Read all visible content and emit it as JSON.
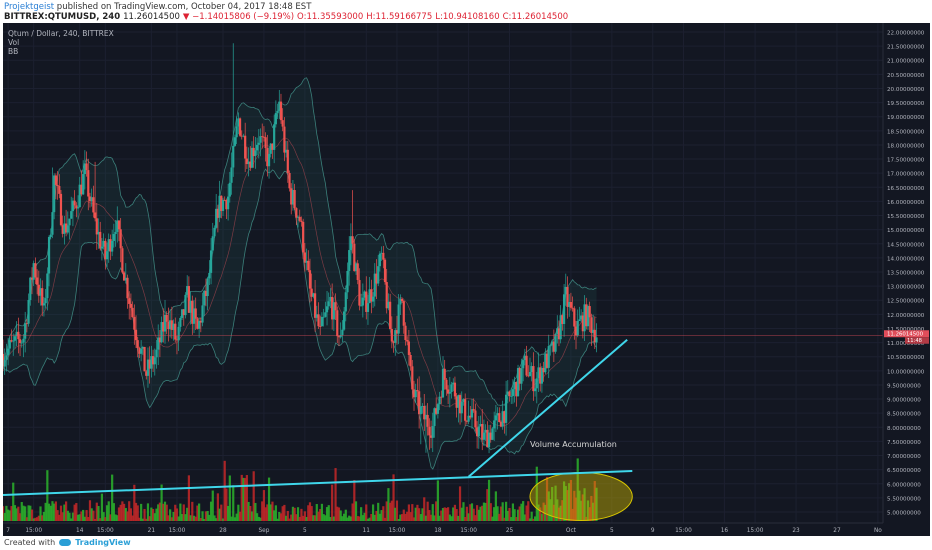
{
  "header": {
    "user": "Projektgeist",
    "published_text": "published on TradingView.com, October 04, 2017 18:48 EST",
    "symbol": "BITTREX:QTUMUSD, 240",
    "price": "11.26014500",
    "change": "▼ −1.14015806 (−9.19%)",
    "o": "O:11.35593000",
    "h": "H:11.59166775",
    "l": "L:10.94108160",
    "c": "C:11.26014500"
  },
  "legend": {
    "line1": "Qtum / Dollar, 240, BITTREX",
    "line2": "Vol",
    "line3": "BB"
  },
  "footer": {
    "created_with": "Created with",
    "brand": "TradingView"
  },
  "colors": {
    "background": "#131722",
    "up": "#26a69a",
    "down": "#ef5350",
    "vol_up": "#2bb32b",
    "vol_down": "#c62828",
    "band": "#3b7f7a",
    "trend": "#3fd6ea",
    "last_price": "#e04d5a"
  },
  "chart_data": {
    "type": "candlestick",
    "y_axis": {
      "min": 5.0,
      "max": 22.0,
      "ticks": [
        "5.00000000",
        "5.50000000",
        "6.00000000",
        "6.50000000",
        "7.00000000",
        "7.50000000",
        "8.00000000",
        "8.50000000",
        "9.00000000",
        "9.50000000",
        "10.00000000",
        "10.50000000",
        "11.00000000",
        "11.50000000",
        "12.00000000",
        "12.50000000",
        "13.00000000",
        "13.50000000",
        "14.00000000",
        "14.50000000",
        "15.00000000",
        "15.50000000",
        "16.00000000",
        "16.50000000",
        "17.00000000",
        "17.50000000",
        "18.00000000",
        "18.50000000",
        "19.00000000",
        "19.50000000",
        "20.00000000",
        "20.50000000",
        "21.00000000",
        "21.50000000",
        "22.00000000"
      ]
    },
    "x_axis": {
      "labels": [
        {
          "text": "7",
          "day": 0.5
        },
        {
          "text": "15:00",
          "day": 3
        },
        {
          "text": "14",
          "day": 7.5
        },
        {
          "text": "15:00",
          "day": 10
        },
        {
          "text": "21",
          "day": 14.5
        },
        {
          "text": "15:00",
          "day": 17
        },
        {
          "text": "28",
          "day": 21.5
        },
        {
          "text": "Sep",
          "day": 25.5
        },
        {
          "text": "5",
          "day": 29.5
        },
        {
          "text": "11",
          "day": 35.5
        },
        {
          "text": "15:00",
          "day": 38.5
        },
        {
          "text": "18",
          "day": 42.5
        },
        {
          "text": "15:00",
          "day": 45.5
        },
        {
          "text": "25",
          "day": 49.5
        },
        {
          "text": "Oct",
          "day": 55.5
        },
        {
          "text": "5",
          "day": 59.5
        },
        {
          "text": "9",
          "day": 63.5
        },
        {
          "text": "15:00",
          "day": 66.5
        },
        {
          "text": "16",
          "day": 70.5
        },
        {
          "text": "15:00",
          "day": 73.5
        },
        {
          "text": "23",
          "day": 77.5
        },
        {
          "text": "27",
          "day": 81.5
        },
        {
          "text": "No",
          "day": 85.5
        }
      ],
      "day_range": [
        0,
        86
      ]
    },
    "price_path": [
      [
        0,
        10.6
      ],
      [
        2,
        11.2
      ],
      [
        3,
        13.8
      ],
      [
        4,
        12.0
      ],
      [
        5,
        16.8
      ],
      [
        6,
        15.0
      ],
      [
        7,
        15.8
      ],
      [
        8,
        17.0
      ],
      [
        9,
        15.2
      ],
      [
        10,
        14.0
      ],
      [
        11,
        15.3
      ],
      [
        12,
        13.2
      ],
      [
        13,
        11.4
      ],
      [
        14,
        9.9
      ],
      [
        15,
        10.6
      ],
      [
        16,
        12.0
      ],
      [
        17,
        11.0
      ],
      [
        18,
        12.6
      ],
      [
        19,
        11.4
      ],
      [
        20,
        13.0
      ],
      [
        21,
        15.8
      ],
      [
        22,
        16.2
      ],
      [
        23,
        18.9
      ],
      [
        24,
        17.5
      ],
      [
        25,
        18.3
      ],
      [
        26,
        17.4
      ],
      [
        27,
        19.5
      ],
      [
        28,
        16.4
      ],
      [
        29,
        15.4
      ],
      [
        30,
        12.8
      ],
      [
        31,
        11.3
      ],
      [
        32,
        12.5
      ],
      [
        33,
        11.0
      ],
      [
        34,
        14.8
      ],
      [
        35,
        12.2
      ],
      [
        36,
        12.8
      ],
      [
        37,
        14.0
      ],
      [
        38,
        11.0
      ],
      [
        39,
        12.5
      ],
      [
        40,
        9.3
      ],
      [
        41,
        8.4
      ],
      [
        42,
        8.0
      ],
      [
        43,
        9.8
      ],
      [
        44,
        9.4
      ],
      [
        45,
        8.6
      ],
      [
        46,
        8.2
      ],
      [
        47,
        7.6
      ],
      [
        48,
        8.0
      ],
      [
        49,
        8.6
      ],
      [
        50,
        9.4
      ],
      [
        51,
        10.2
      ],
      [
        52,
        9.6
      ],
      [
        53,
        10.3
      ],
      [
        54,
        10.9
      ],
      [
        55,
        12.6
      ],
      [
        56,
        11.5
      ],
      [
        57,
        12.0
      ],
      [
        58,
        11.3
      ]
    ],
    "last_price": 11.260145,
    "last_price_labels": [
      "11.26014500",
      "11:48"
    ],
    "annotations": [
      {
        "type": "trendline",
        "name": "support",
        "from": [
          45.5,
          6.25
        ],
        "to": [
          61.0,
          11.1
        ]
      },
      {
        "type": "trendline",
        "name": "volume-base",
        "from": [
          0,
          5.6
        ],
        "to": [
          61.5,
          6.45
        ]
      },
      {
        "type": "ellipse",
        "name": "volume-accumulation",
        "center": [
          56.5,
          5.55
        ],
        "rx_days": 5.0,
        "ry_price": 0.85
      },
      {
        "type": "text",
        "name": "volume-accumulation-label",
        "text": "Volume Accumulation",
        "at": [
          51.5,
          7.3
        ]
      }
    ]
  }
}
